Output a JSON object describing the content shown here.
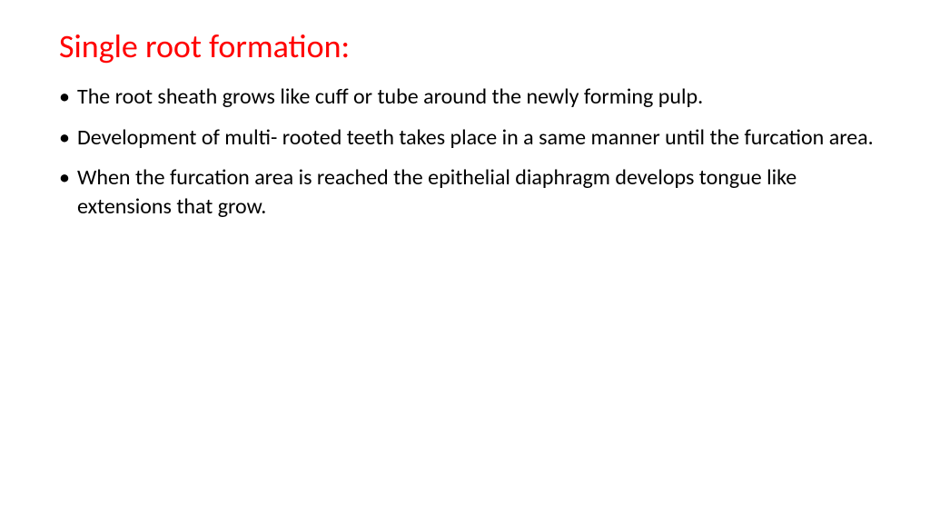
{
  "slide": {
    "title": "Single root formation:",
    "title_color": "#ff0000",
    "title_fontsize": 36,
    "body_color": "#000000",
    "body_fontsize": 24,
    "background_color": "#ffffff",
    "bullets": [
      "The root sheath grows like cuff or tube around the newly forming pulp.",
      "Development of multi- rooted teeth takes place in a same manner until the furcation area.",
      "When the furcation area is reached the epithelial diaphragm develops tongue like extensions that grow."
    ]
  }
}
